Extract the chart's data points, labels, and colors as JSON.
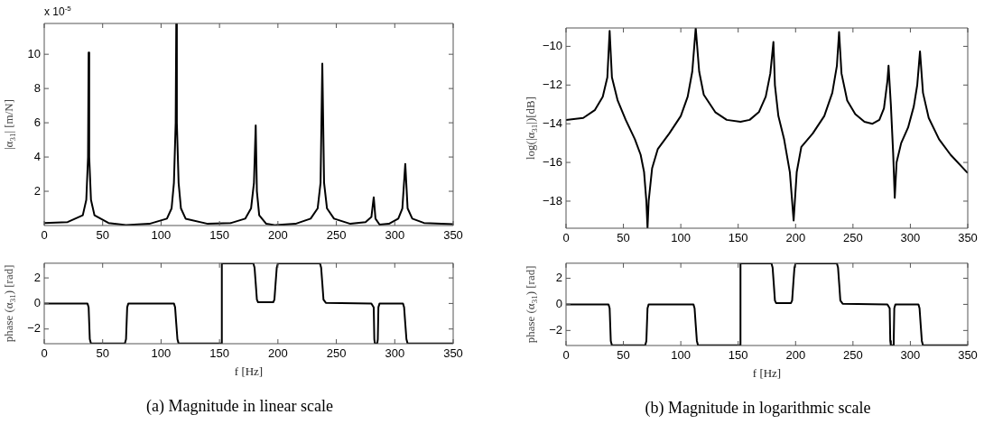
{
  "chart_data": [
    {
      "type": "line",
      "ylabel": "|α$_{31}$| [m/N]",
      "annotations": [
        "x 10$^{-5}$"
      ],
      "xlim": [
        0,
        350
      ],
      "xticks": [
        0,
        50,
        100,
        150,
        200,
        250,
        300,
        350
      ],
      "ylim": [
        0,
        11.8
      ],
      "yticks": [
        2,
        4,
        6,
        8,
        10
      ],
      "x": [
        0,
        20,
        33,
        36,
        37.5,
        38,
        38.5,
        40,
        43,
        55,
        70,
        90,
        105,
        109,
        111,
        112.5,
        113,
        113.5,
        115,
        117,
        121,
        140,
        160,
        172,
        177,
        179.5,
        181,
        182,
        184,
        190,
        198,
        215,
        228,
        234,
        236.5,
        238,
        239.5,
        242,
        248,
        262,
        275,
        280,
        282,
        283.5,
        287,
        295,
        303,
        306.5,
        309,
        311,
        315,
        325,
        350
      ],
      "series": [
        {
          "color": "#000000",
          "values": [
            0.15,
            0.2,
            0.6,
            1.5,
            4,
            10.1,
            4,
            1.5,
            0.6,
            0.15,
            0.03,
            0.1,
            0.4,
            1,
            2.5,
            6,
            11.8,
            6,
            2.5,
            1,
            0.4,
            0.1,
            0.15,
            0.4,
            1,
            2.5,
            5.85,
            2,
            0.6,
            0.1,
            0.02,
            0.1,
            0.4,
            1,
            2.5,
            9.45,
            2.5,
            1,
            0.4,
            0.1,
            0.2,
            0.5,
            1.65,
            0.4,
            0.05,
            0.1,
            0.4,
            1,
            3.6,
            1,
            0.4,
            0.15,
            0.08
          ]
        }
      ]
    },
    {
      "type": "line",
      "xlabel": "f [Hz]",
      "ylabel": "phase (α$_{31}$) [rad]",
      "annotations": [
        "(a) Magnitude in linear scale"
      ],
      "xlim": [
        0,
        350
      ],
      "xticks": [
        0,
        50,
        100,
        150,
        200,
        250,
        300,
        350
      ],
      "ylim": [
        -3.15,
        3.15
      ],
      "yticks": [
        -2,
        0,
        2
      ],
      "x": [
        0,
        37,
        38,
        39,
        40,
        69,
        70,
        71,
        72,
        111,
        112,
        113,
        114,
        115,
        151.9,
        152,
        179,
        180,
        181,
        182,
        183,
        196,
        197,
        198,
        199,
        200,
        236,
        237,
        238,
        239,
        241,
        280,
        282,
        282.5,
        283,
        285,
        285.5,
        286,
        287,
        307,
        308,
        309,
        310,
        311,
        350
      ],
      "series": [
        {
          "color": "#000000",
          "values": [
            0,
            0,
            -0.3,
            -2.8,
            -3.14,
            -3.14,
            -2.8,
            -0.3,
            0,
            0,
            -0.3,
            -1.57,
            -2.8,
            -3.14,
            -3.14,
            3.14,
            3.14,
            2.8,
            1.57,
            0.3,
            0.1,
            0.1,
            0.3,
            1.57,
            2.8,
            3.14,
            3.14,
            2.8,
            1.57,
            0.3,
            0.05,
            0,
            -0.3,
            -2.8,
            -3.14,
            -3.14,
            -2.8,
            -0.3,
            0,
            0,
            -0.3,
            -1.57,
            -2.8,
            -3.14,
            -3.14
          ]
        }
      ]
    },
    {
      "type": "line",
      "ylabel": "log(|α$_{31}$|)[dB]",
      "xlim": [
        0,
        350
      ],
      "xticks": [
        0,
        50,
        100,
        150,
        200,
        250,
        300,
        350
      ],
      "ylim": [
        -19.4,
        -9.05
      ],
      "yticks": [
        -18,
        -16,
        -14,
        -12,
        -10
      ],
      "x": [
        0,
        15,
        25,
        32,
        36,
        38,
        40,
        45,
        52,
        60,
        65,
        68,
        70,
        71,
        72,
        75,
        80,
        90,
        100,
        106,
        110,
        113,
        116,
        120,
        130,
        140,
        152,
        160,
        168,
        174,
        178,
        180.7,
        182,
        185,
        190,
        195,
        198.3,
        201,
        205,
        215,
        225,
        232,
        236,
        237.9,
        240,
        245,
        252,
        260,
        267,
        273,
        277,
        280,
        281,
        283,
        285,
        286.4,
        288,
        292,
        298,
        303,
        306,
        308.4,
        311,
        316,
        325,
        335,
        350
      ],
      "series": [
        {
          "color": "#000000",
          "values": [
            -13.8,
            -13.7,
            -13.3,
            -12.6,
            -11.6,
            -9.2,
            -11.6,
            -12.8,
            -13.8,
            -14.8,
            -15.6,
            -16.5,
            -18,
            -19.4,
            -18,
            -16.3,
            -15.3,
            -14.5,
            -13.6,
            -12.6,
            -11.3,
            -9.05,
            -11.3,
            -12.5,
            -13.4,
            -13.8,
            -13.9,
            -13.8,
            -13.4,
            -12.6,
            -11.4,
            -9.77,
            -12,
            -13.6,
            -14.8,
            -16.5,
            -19.0,
            -16.5,
            -15.2,
            -14.5,
            -13.6,
            -12.4,
            -11,
            -9.26,
            -11.4,
            -12.8,
            -13.5,
            -13.9,
            -14.0,
            -13.8,
            -13.2,
            -11.8,
            -11.0,
            -13,
            -15.5,
            -17.83,
            -16,
            -15,
            -14.2,
            -13.1,
            -12,
            -10.26,
            -12.4,
            -13.7,
            -14.8,
            -15.6,
            -16.55
          ]
        }
      ]
    },
    {
      "type": "line",
      "xlabel": "f [Hz]",
      "ylabel": "phase (α$_{31}$) [rad]",
      "annotations": [
        "(b) Magnitude in logarithmic scale"
      ],
      "xlim": [
        0,
        350
      ],
      "xticks": [
        0,
        50,
        100,
        150,
        200,
        250,
        300,
        350
      ],
      "ylim": [
        -3.15,
        3.15
      ],
      "yticks": [
        -2,
        0,
        2
      ],
      "x": [
        0,
        37,
        38,
        39,
        40,
        69,
        70,
        71,
        72,
        111,
        112,
        113,
        114,
        115,
        151.9,
        152,
        179,
        180,
        181,
        182,
        183,
        196,
        197,
        198,
        199,
        200,
        236,
        237,
        238,
        239,
        241,
        280,
        282,
        282.5,
        283,
        285,
        285.5,
        286,
        287,
        307,
        308,
        309,
        310,
        311,
        350
      ],
      "series": [
        {
          "color": "#000000",
          "values": [
            0,
            0,
            -0.3,
            -2.8,
            -3.14,
            -3.14,
            -2.8,
            -0.3,
            0,
            0,
            -0.3,
            -1.57,
            -2.8,
            -3.14,
            -3.14,
            3.14,
            3.14,
            2.8,
            1.57,
            0.3,
            0.1,
            0.1,
            0.3,
            1.57,
            2.8,
            3.14,
            3.14,
            2.8,
            1.57,
            0.3,
            0.05,
            0,
            -0.3,
            -2.8,
            -3.14,
            -3.14,
            -2.8,
            -0.3,
            0,
            0,
            -0.3,
            -1.57,
            -2.8,
            -3.14,
            -3.14
          ]
        }
      ]
    }
  ]
}
